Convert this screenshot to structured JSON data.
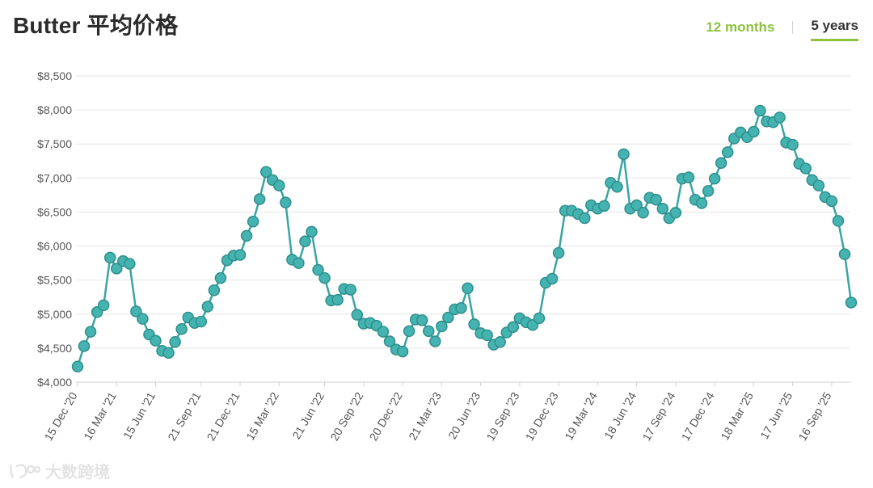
{
  "header": {
    "title": "Butter 平均价格",
    "tabs": [
      {
        "label": "12 months",
        "active": false
      },
      {
        "label": "5 years",
        "active": true
      }
    ]
  },
  "watermark": {
    "text": "大数跨境"
  },
  "colors": {
    "line": "#3aa5a4",
    "marker_fill": "#45b3b0",
    "marker_stroke": "#2e8f8d",
    "accent": "#8dc13f",
    "grid": "#e6e6e6"
  },
  "chart_data": {
    "type": "line",
    "title": "Butter 平均价格",
    "xlabel": "",
    "ylabel": "",
    "ylim": [
      4000,
      8500
    ],
    "y_ticks": [
      4000,
      4500,
      5000,
      5500,
      6000,
      6500,
      7000,
      7500,
      8000,
      8500
    ],
    "y_tick_labels": [
      "$4,000",
      "$4,500",
      "$5,000",
      "$5,500",
      "$6,000",
      "$6,500",
      "$7,000",
      "$7,500",
      "$8,000",
      "$8,500"
    ],
    "grid": true,
    "x_tick_labels": [
      {
        "label": "15 Dec '20",
        "index": 0
      },
      {
        "label": "16 Mar '21",
        "index": 6
      },
      {
        "label": "15 Jun '21",
        "index": 12
      },
      {
        "label": "21 Sep '21",
        "index": 19
      },
      {
        "label": "21 Dec '21",
        "index": 25
      },
      {
        "label": "15 Mar '22",
        "index": 31
      },
      {
        "label": "21 Jun '22",
        "index": 38
      },
      {
        "label": "20 Sep '22",
        "index": 44
      },
      {
        "label": "20 Dec '22",
        "index": 50
      },
      {
        "label": "21 Mar '23",
        "index": 56
      },
      {
        "label": "20 Jun '23",
        "index": 62
      },
      {
        "label": "19 Sep '23",
        "index": 68
      },
      {
        "label": "19 Dec '23",
        "index": 74
      },
      {
        "label": "19 Mar '24",
        "index": 80
      },
      {
        "label": "18 Jun '24",
        "index": 86
      },
      {
        "label": "17 Sep '24",
        "index": 92
      },
      {
        "label": "17 Dec '24",
        "index": 98
      },
      {
        "label": "18 Mar '25",
        "index": 104
      },
      {
        "label": "17 Jun '25",
        "index": 110
      },
      {
        "label": "16 Sep '25",
        "index": 116
      }
    ],
    "series": [
      {
        "values": [
          4230,
          4530,
          4740,
          5030,
          5130,
          5830,
          5670,
          5780,
          5740,
          5040,
          4930,
          4700,
          4610,
          4460,
          4430,
          4590,
          4780,
          4950,
          4870,
          4890,
          5110,
          5350,
          5530,
          5790,
          5860,
          5870,
          6150,
          6360,
          6690,
          7090,
          6970,
          6890,
          6640,
          5800,
          5750,
          6070,
          6210,
          5650,
          5530,
          5200,
          5210,
          5370,
          5360,
          4990,
          4860,
          4870,
          4830,
          4740,
          4600,
          4480,
          4450,
          4750,
          4920,
          4910,
          4750,
          4600,
          4820,
          4950,
          5070,
          5090,
          5380,
          4850,
          4720,
          4690,
          4550,
          4590,
          4730,
          4810,
          4940,
          4880,
          4840,
          4940,
          5460,
          5520,
          5900,
          6520,
          6520,
          6470,
          6410,
          6600,
          6550,
          6590,
          6930,
          6870,
          7350,
          6550,
          6600,
          6490,
          6710,
          6680,
          6550,
          6410,
          6490,
          6990,
          7010,
          6680,
          6630,
          6810,
          6990,
          7220,
          7380,
          7580,
          7670,
          7600,
          7680,
          7990,
          7830,
          7820,
          7890,
          7520,
          7490,
          7210,
          7140,
          6970,
          6890,
          6720,
          6660,
          6370,
          5880,
          5170
        ]
      }
    ]
  }
}
